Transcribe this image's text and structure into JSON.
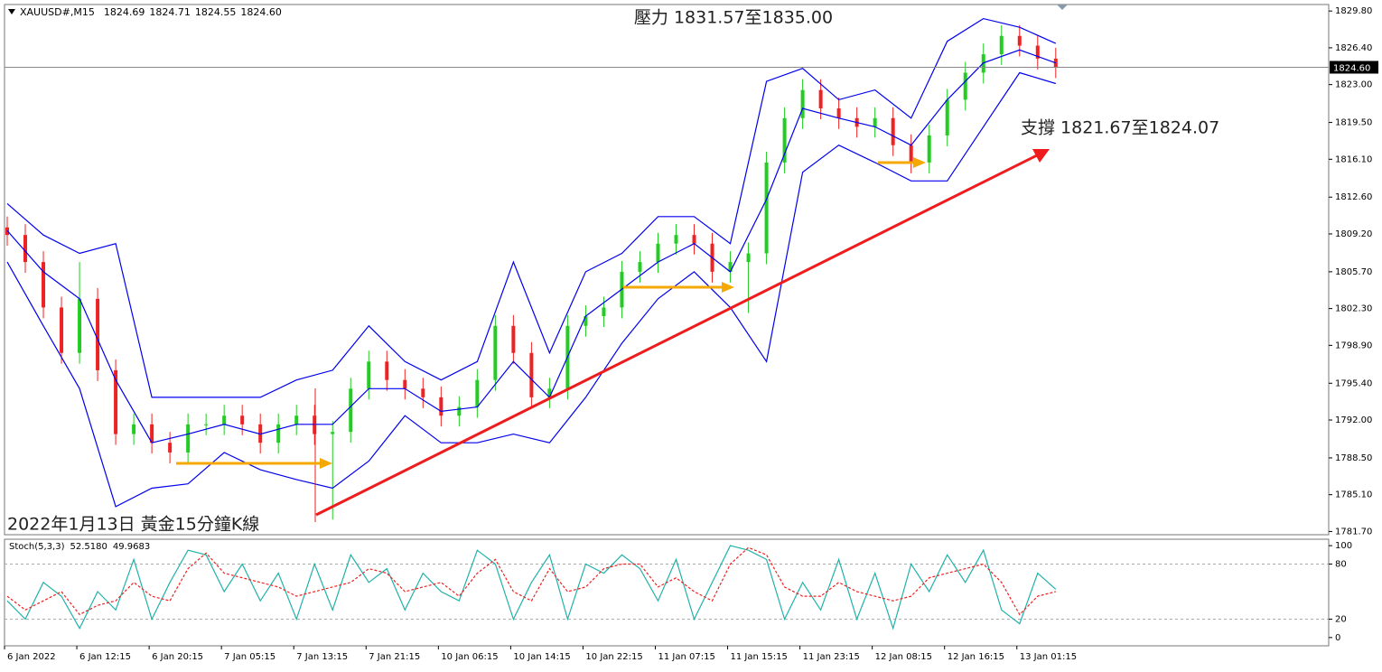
{
  "chart_data": [
    {
      "type": "candlestick",
      "symbol": "XAUUSD#,M15",
      "ohlc_header": [
        {
          "value": 1824.69,
          "label": "1824.69"
        },
        {
          "value": 1824.71,
          "label": "1824.71"
        },
        {
          "value": 1824.55,
          "label": "1824.55"
        },
        {
          "value": 1824.6,
          "label": "1824.60"
        }
      ],
      "annotations": [
        "壓力 1831.57至1835.00",
        "支撐 1821.67至1824.07",
        "2022年1月13日 黃金15分鐘K線"
      ],
      "up_color": "#22cc22",
      "down_color": "#ee2222",
      "xlim": [
        0,
        586
      ],
      "x": [
        0,
        8,
        16,
        24,
        32,
        40,
        48,
        56,
        64,
        72,
        80,
        88,
        96,
        104,
        112,
        120,
        128,
        136,
        144,
        152,
        160,
        168,
        176,
        184,
        192,
        200,
        208,
        216,
        224,
        232,
        240,
        248,
        256,
        264,
        272,
        280,
        288,
        296,
        304,
        312,
        320,
        328,
        336,
        344,
        352,
        360,
        368,
        376,
        384,
        392,
        400,
        408,
        416,
        424,
        432,
        440,
        448,
        456,
        464
      ],
      "open": [
        1809.8,
        1809.1,
        1806.6,
        1802.4,
        1798.2,
        1803.2,
        1796.6,
        1790.7,
        1791.6,
        1789.9,
        1789.0,
        1791.6,
        1791.6,
        1792.4,
        1791.6,
        1789.9,
        1791.6,
        1792.4,
        1790.7,
        1790.9,
        1794.9,
        1797.4,
        1795.7,
        1794.9,
        1794.1,
        1792.4,
        1793.2,
        1795.7,
        1800.7,
        1798.2,
        1794.1,
        1794.9,
        1800.7,
        1801.6,
        1802.4,
        1805.7,
        1806.6,
        1808.3,
        1809.1,
        1808.3,
        1805.7,
        1806.6,
        1807.4,
        1815.8,
        1819.9,
        1822.5,
        1820.8,
        1819.9,
        1819.1,
        1819.9,
        1817.4,
        1815.8,
        1818.3,
        1821.6,
        1824.1,
        1825.8,
        1827.5,
        1826.6,
        1825.4
      ],
      "high": [
        1810.8,
        1810.1,
        1807.6,
        1803.4,
        1806.6,
        1804.2,
        1797.6,
        1792.6,
        1792.6,
        1790.9,
        1792.6,
        1792.6,
        1793.4,
        1793.4,
        1792.6,
        1792.6,
        1793.4,
        1793.4,
        1791.9,
        1795.9,
        1798.4,
        1798.4,
        1796.7,
        1795.9,
        1795.1,
        1794.2,
        1796.7,
        1801.7,
        1801.7,
        1799.2,
        1795.9,
        1801.7,
        1802.6,
        1803.4,
        1806.7,
        1807.6,
        1809.3,
        1810.1,
        1810.1,
        1809.3,
        1807.6,
        1808.4,
        1816.8,
        1820.9,
        1823.5,
        1823.5,
        1821.8,
        1820.9,
        1820.9,
        1820.9,
        1818.4,
        1819.3,
        1822.6,
        1825.1,
        1826.8,
        1828.5,
        1828.5,
        1827.6,
        1826.4
      ],
      "low": [
        1808.1,
        1805.6,
        1801.4,
        1797.2,
        1797.2,
        1795.6,
        1789.7,
        1789.7,
        1788.9,
        1788.0,
        1788.0,
        1790.6,
        1790.6,
        1790.6,
        1788.9,
        1788.9,
        1790.6,
        1789.7,
        1782.8,
        1789.9,
        1793.9,
        1794.7,
        1793.9,
        1793.1,
        1791.4,
        1791.4,
        1792.2,
        1794.7,
        1797.2,
        1793.1,
        1793.1,
        1793.9,
        1799.7,
        1800.6,
        1801.4,
        1804.7,
        1805.6,
        1807.3,
        1807.3,
        1804.7,
        1804.7,
        1801.9,
        1806.4,
        1814.8,
        1818.9,
        1819.8,
        1818.9,
        1818.1,
        1818.1,
        1816.4,
        1814.8,
        1814.8,
        1817.3,
        1820.6,
        1823.1,
        1824.8,
        1825.6,
        1824.4,
        1823.6
      ],
      "close": [
        1809.1,
        1806.6,
        1802.4,
        1798.2,
        1803.2,
        1796.6,
        1790.7,
        1791.6,
        1789.9,
        1789.0,
        1791.6,
        1791.6,
        1792.4,
        1791.6,
        1789.9,
        1791.6,
        1792.4,
        1790.7,
        1790.9,
        1794.9,
        1797.4,
        1795.7,
        1794.9,
        1794.1,
        1792.4,
        1793.2,
        1795.7,
        1800.7,
        1798.2,
        1794.1,
        1794.9,
        1800.7,
        1801.6,
        1802.4,
        1805.7,
        1806.6,
        1808.3,
        1809.1,
        1808.3,
        1805.7,
        1806.6,
        1807.4,
        1815.8,
        1819.9,
        1822.5,
        1820.8,
        1819.9,
        1819.1,
        1819.9,
        1817.4,
        1815.8,
        1818.3,
        1821.6,
        1824.1,
        1825.8,
        1827.5,
        1826.6,
        1825.4,
        1824.6
      ],
      "bands": {
        "color": "#0000ee",
        "x": [
          0,
          16,
          32,
          48,
          64,
          80,
          96,
          112,
          128,
          144,
          160,
          176,
          192,
          208,
          224,
          240,
          256,
          272,
          288,
          304,
          320,
          336,
          352,
          368,
          384,
          400,
          416,
          432,
          448,
          464
        ],
        "upper": [
          1812.0,
          1809.1,
          1807.4,
          1808.3,
          1794.1,
          1794.1,
          1794.1,
          1794.1,
          1795.7,
          1796.6,
          1800.7,
          1797.4,
          1795.7,
          1797.4,
          1806.6,
          1798.2,
          1805.7,
          1807.4,
          1810.8,
          1810.8,
          1808.3,
          1823.3,
          1824.5,
          1821.6,
          1822.5,
          1819.9,
          1827.0,
          1829.1,
          1828.3,
          1826.8
        ],
        "middle": [
          1809.5,
          1805.7,
          1803.2,
          1795.7,
          1789.9,
          1790.7,
          1791.6,
          1790.7,
          1791.6,
          1791.6,
          1794.9,
          1794.9,
          1792.8,
          1793.2,
          1797.4,
          1794.1,
          1801.6,
          1804.1,
          1806.6,
          1808.3,
          1805.7,
          1812.4,
          1820.8,
          1819.9,
          1819.1,
          1817.4,
          1821.6,
          1825.0,
          1826.2,
          1825.0
        ],
        "lower": [
          1806.6,
          1800.7,
          1794.9,
          1784.0,
          1785.7,
          1786.1,
          1789.0,
          1787.4,
          1786.5,
          1785.7,
          1788.2,
          1792.4,
          1789.9,
          1789.9,
          1790.7,
          1789.9,
          1794.1,
          1799.1,
          1803.2,
          1805.7,
          1802.4,
          1797.4,
          1814.9,
          1817.4,
          1815.8,
          1814.1,
          1814.1,
          1819.1,
          1824.1,
          1823.1
        ]
      },
      "current_price": {
        "value": 1824.6,
        "label": "1824.60"
      },
      "ylim": [
        1781.4,
        1830.4
      ],
      "yticks": [
        {
          "value": 1829.8,
          "label": "1829.80"
        },
        {
          "value": 1826.4,
          "label": "1826.40"
        },
        {
          "value": 1823.0,
          "label": "1823.00"
        },
        {
          "value": 1819.5,
          "label": "1819.50"
        },
        {
          "value": 1816.1,
          "label": "1816.10"
        },
        {
          "value": 1812.6,
          "label": "1812.60"
        },
        {
          "value": 1809.2,
          "label": "1809.20"
        },
        {
          "value": 1805.7,
          "label": "1805.70"
        },
        {
          "value": 1802.3,
          "label": "1802.30"
        },
        {
          "value": 1798.9,
          "label": "1798.90"
        },
        {
          "value": 1795.4,
          "label": "1795.40"
        },
        {
          "value": 1792.0,
          "label": "1792.00"
        },
        {
          "value": 1788.5,
          "label": "1788.50"
        },
        {
          "value": 1785.1,
          "label": "1785.10"
        },
        {
          "value": 1781.7,
          "label": "1781.70"
        }
      ]
    },
    {
      "type": "line",
      "title": "Stoch(5,3,3)",
      "header_values": [
        {
          "value": 52.518,
          "label": "52.5180"
        },
        49.9683
      ],
      "xlim": [
        0,
        586
      ],
      "x": [
        0,
        8,
        16,
        24,
        32,
        40,
        48,
        56,
        64,
        72,
        80,
        88,
        96,
        104,
        112,
        120,
        128,
        136,
        144,
        152,
        160,
        168,
        176,
        184,
        192,
        200,
        208,
        216,
        224,
        232,
        240,
        248,
        256,
        264,
        272,
        280,
        288,
        296,
        304,
        312,
        320,
        328,
        336,
        344,
        352,
        360,
        368,
        376,
        384,
        392,
        400,
        408,
        416,
        424,
        432,
        440,
        448,
        456,
        464
      ],
      "series": [
        {
          "color": "#20b2aa",
          "values": [
            40,
            20,
            60,
            45,
            10,
            50,
            30,
            85,
            20,
            60,
            95,
            90,
            50,
            80,
            40,
            70,
            20,
            80,
            30,
            90,
            60,
            75,
            30,
            70,
            50,
            40,
            95,
            80,
            20,
            60,
            90,
            20,
            80,
            70,
            90,
            75,
            40,
            85,
            20,
            60,
            100,
            95,
            85,
            20,
            60,
            30,
            85,
            20,
            70,
            10,
            80,
            50,
            90,
            60,
            95,
            30,
            15,
            70,
            52.518
          ]
        },
        {
          "color": "#ee2222",
          "dashed": true,
          "values": [
            45,
            30,
            40,
            50,
            25,
            35,
            40,
            60,
            45,
            40,
            75,
            92,
            70,
            65,
            60,
            55,
            45,
            50,
            55,
            60,
            75,
            70,
            50,
            55,
            60,
            45,
            70,
            85,
            50,
            40,
            75,
            50,
            55,
            75,
            80,
            80,
            55,
            65,
            50,
            40,
            80,
            98,
            90,
            55,
            45,
            45,
            60,
            50,
            45,
            40,
            45,
            65,
            70,
            75,
            80,
            60,
            25,
            45,
            49.9683
          ]
        }
      ],
      "levels": [
        20,
        80
      ],
      "ylim": [
        -9,
        107
      ],
      "yticks": [
        0,
        20,
        80,
        100
      ],
      "xticks": [
        {
          "value": 0,
          "label": "6 Jan 2022"
        },
        {
          "value": 32,
          "label": "6 Jan 12:15"
        },
        {
          "value": 64,
          "label": "6 Jan 20:15"
        },
        {
          "value": 96,
          "label": "7 Jan 05:15"
        },
        {
          "value": 128,
          "label": "7 Jan 13:15"
        },
        {
          "value": 160,
          "label": "7 Jan 21:15"
        },
        {
          "value": 192,
          "label": "10 Jan 06:15"
        },
        {
          "value": 224,
          "label": "10 Jan 14:15"
        },
        {
          "value": 256,
          "label": "10 Jan 22:15"
        },
        {
          "value": 288,
          "label": "11 Jan 07:15"
        },
        {
          "value": 320,
          "label": "11 Jan 15:15"
        },
        {
          "value": 352,
          "label": "11 Jan 23:15"
        },
        {
          "value": 384,
          "label": "12 Jan 08:15"
        },
        {
          "value": 416,
          "label": "12 Jan 16:15"
        },
        {
          "value": 448,
          "label": "13 Jan 01:15"
        }
      ]
    }
  ]
}
